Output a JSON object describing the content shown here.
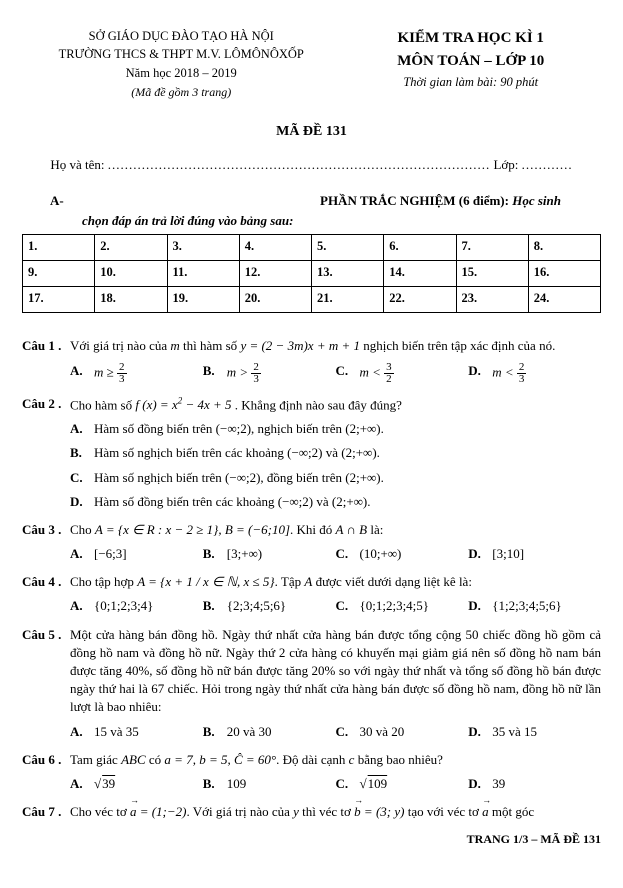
{
  "header": {
    "dept": "SỞ GIÁO DỤC ĐÀO TẠO HÀ NỘI",
    "school": "TRƯỜNG THCS & THPT M.V. LÔMÔNÔXỐP",
    "year": "Năm học 2018 – 2019",
    "subnote": "(Mã đề gồm 3 trang)",
    "exam_title": "KIỂM TRA HỌC KÌ 1",
    "exam_sub": "MÔN TOÁN – LỚP 10",
    "time": "Thời gian làm bài: 90 phút"
  },
  "code": "MÃ ĐỀ 131",
  "name_label": "Họ và tên: ",
  "class_label": " Lớp: ",
  "sectionA": {
    "label": "A-",
    "title_b": "PHẦN TRẮC NGHIỆM (6 điểm):",
    "title_i": " Học sinh",
    "instr": "chọn đáp án trả lời đúng vào bảng sau:"
  },
  "table": {
    "rows": [
      [
        "1.",
        "2.",
        "3.",
        "4.",
        "5.",
        "6.",
        "7.",
        "8."
      ],
      [
        "9.",
        "10.",
        "11.",
        "12.",
        "13.",
        "14.",
        "15.",
        "16."
      ],
      [
        "17.",
        "18.",
        "19.",
        "20.",
        "21.",
        "22.",
        "23.",
        "24."
      ]
    ]
  },
  "q1": {
    "label": "Câu 1 .",
    "text_a": "Với giá trị nào của ",
    "text_b": " thì hàm số ",
    "text_c": " nghịch biến trên tập xác định của nó.",
    "optA": "A.",
    "optB": "B.",
    "optC": "C.",
    "optD": "D."
  },
  "q2": {
    "label": "Câu 2 .",
    "text_a": "Cho hàm số ",
    "text_b": " . Khẳng định nào sau đây đúng?",
    "a": "Hàm số đồng biến trên (−∞;2), nghịch biến trên (2;+∞).",
    "b": "Hàm số nghịch biến trên các khoảng (−∞;2) và (2;+∞).",
    "c": "Hàm số nghịch biến trên (−∞;2), đồng biến trên (2;+∞).",
    "d": "Hàm số đồng biến trên các khoảng (−∞;2) và (2;+∞).",
    "optA": "A.",
    "optB": "B.",
    "optC": "C.",
    "optD": "D."
  },
  "q3": {
    "label": "Câu 3 .",
    "text_a": "Cho ",
    "text_b": ". Khi đó ",
    "text_c": " là:",
    "a": "[−6;3]",
    "b": "[3;+∞)",
    "c": "(10;+∞)",
    "d": "[3;10]",
    "optA": "A.",
    "optB": "B.",
    "optC": "C.",
    "optD": "D."
  },
  "q4": {
    "label": "Câu 4 .",
    "text_a": "Cho tập hợp ",
    "text_b": ". Tập ",
    "text_c": " được viết dưới dạng liệt kê là:",
    "a": "{0;1;2;3;4}",
    "b": "{2;3;4;5;6}",
    "c": "{0;1;2;3;4;5}",
    "d": "{1;2;3;4;5;6}",
    "optA": "A.",
    "optB": "B.",
    "optC": "C.",
    "optD": "D."
  },
  "q5": {
    "label": "Câu 5 .",
    "text": "Một cửa hàng bán đồng hồ. Ngày thứ nhất cửa hàng bán được tổng cộng 50 chiếc đồng hồ gồm cả đồng hồ nam và đồng hồ nữ. Ngày thứ 2 cửa hàng có khuyến mại giảm giá nên số đồng hồ nam bán được tăng 40%, số đồng hồ nữ bán được tăng 20% so với ngày thứ nhất và tổng số đồng hồ bán được ngày thứ hai là 67 chiếc. Hỏi trong ngày thứ nhất cửa hàng bán được số đồng hồ nam, đồng hồ nữ lần lượt là bao nhiêu:",
    "a": "15 và 35",
    "b": "20 và 30",
    "c": "30 và 20",
    "d": "35 và 15",
    "optA": "A.",
    "optB": "B.",
    "optC": "C.",
    "optD": "D."
  },
  "q6": {
    "label": "Câu 6 .",
    "text_a": "Tam giác ",
    "text_b": " có ",
    "text_c": ". Độ dài cạnh ",
    "text_d": " bằng bao nhiêu?",
    "b": "109",
    "d": "39",
    "optA": "A.",
    "optB": "B.",
    "optC": "C.",
    "optD": "D."
  },
  "q7": {
    "label": "Câu 7 .",
    "text_a": "Cho véc tơ ",
    "text_b": ". Với giá trị nào của ",
    "text_c": " thì véc tơ ",
    "text_d": " tạo với véc tơ ",
    "text_e": " một góc"
  },
  "footer": "TRANG 1/3 – MÃ ĐỀ 131"
}
